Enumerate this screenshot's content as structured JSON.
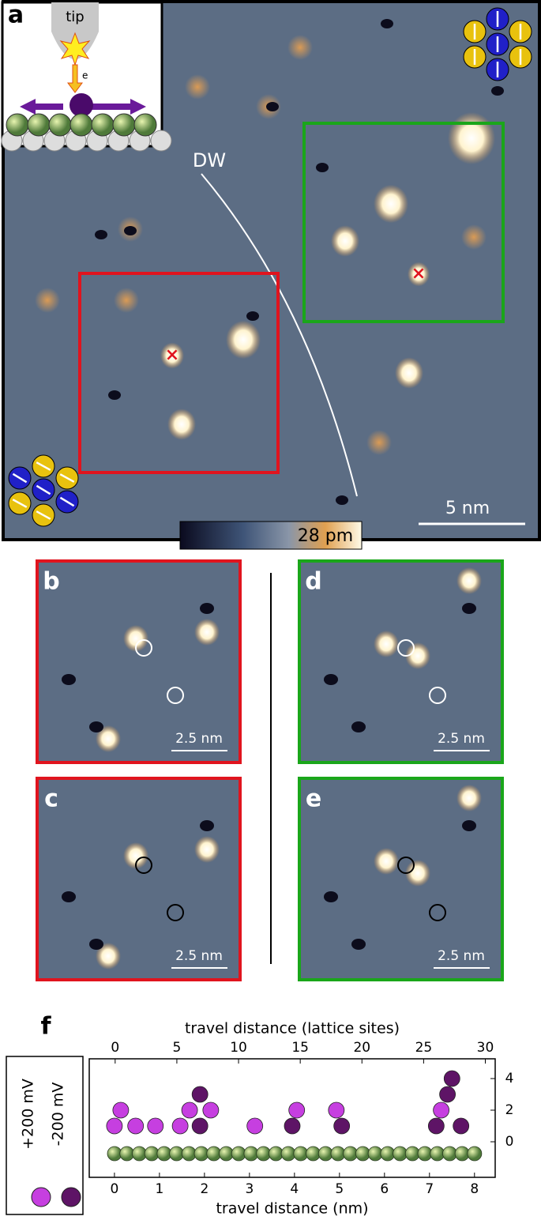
{
  "panel_a": {
    "label": "a",
    "tip": "tip",
    "electron": "e",
    "domain_wall": "DW",
    "scale_bar": "5 nm",
    "colorbar": "28 pm"
  },
  "panels": [
    {
      "label": "b",
      "scale_bar": "2.5 nm"
    },
    {
      "label": "c",
      "scale_bar": "2.5 nm"
    },
    {
      "label": "d",
      "scale_bar": "2.5 nm"
    },
    {
      "label": "e",
      "scale_bar": "2.5 nm"
    }
  ],
  "chart_data": {
    "type": "scatter",
    "label": "f",
    "x_label": "travel distance (nm)",
    "x2_label": "travel distance (lattice sites)",
    "xlim": [
      -0.56,
      8.46
    ],
    "xticks": [
      0,
      1,
      2,
      3,
      4,
      5,
      6,
      7,
      8
    ],
    "x2lim": [
      -2.1,
      30.8
    ],
    "x2ticks": [
      0,
      5,
      10,
      15,
      20,
      25,
      30
    ],
    "ylim": [
      -2.25,
      5.25
    ],
    "yticks": [
      4,
      2,
      0
    ],
    "series": [
      {
        "name": "+200 mV",
        "color": "#c63fe0",
        "x": [
          0,
          0.14,
          0.47,
          0.91,
          1.46,
          1.67,
          2.14,
          3.12,
          4.05,
          4.93,
          7.26
        ],
        "values": [
          1,
          2,
          1,
          1,
          1,
          2,
          2,
          1,
          2,
          2,
          2
        ]
      },
      {
        "name": "-200 mV",
        "color": "#5e1466",
        "x": [
          1.9,
          1.9,
          3.95,
          5.05,
          7.15,
          7.4,
          7.5,
          7.7
        ],
        "values": [
          3,
          1,
          1,
          1,
          1,
          3,
          4,
          1
        ]
      }
    ]
  }
}
